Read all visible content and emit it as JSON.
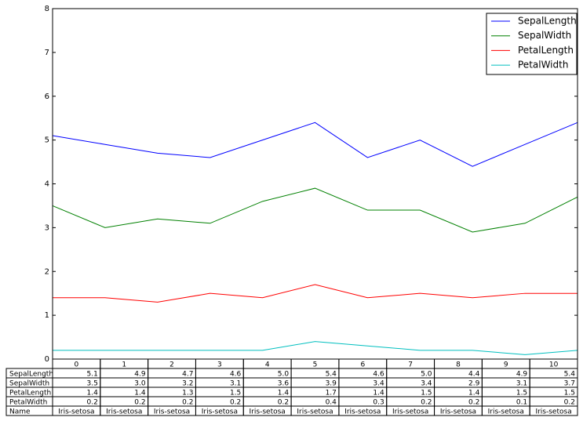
{
  "chart_data": {
    "type": "line",
    "x": [
      0,
      1,
      2,
      3,
      4,
      5,
      6,
      7,
      8,
      9,
      10
    ],
    "xlim": [
      0,
      10
    ],
    "ylim": [
      0,
      8
    ],
    "yticks": [
      0,
      1,
      2,
      3,
      4,
      5,
      6,
      7,
      8
    ],
    "legend": "upper right",
    "series": [
      {
        "name": "SepalLength",
        "color": "#0000ff",
        "values": [
          5.1,
          4.9,
          4.7,
          4.6,
          5.0,
          5.4,
          4.6,
          5.0,
          4.4,
          4.9,
          5.4
        ],
        "value_labels": [
          "5.1",
          "4.9",
          "4.7",
          "4.6",
          "5.0",
          "5.4",
          "4.6",
          "5.0",
          "4.4",
          "4.9",
          "5.4"
        ]
      },
      {
        "name": "SepalWidth",
        "color": "#008000",
        "values": [
          3.5,
          3.0,
          3.2,
          3.1,
          3.6,
          3.9,
          3.4,
          3.4,
          2.9,
          3.1,
          3.7
        ],
        "value_labels": [
          "3.5",
          "3.0",
          "3.2",
          "3.1",
          "3.6",
          "3.9",
          "3.4",
          "3.4",
          "2.9",
          "3.1",
          "3.7"
        ]
      },
      {
        "name": "PetalLength",
        "color": "#ff0000",
        "values": [
          1.4,
          1.4,
          1.3,
          1.5,
          1.4,
          1.7,
          1.4,
          1.5,
          1.4,
          1.5,
          1.5
        ],
        "value_labels": [
          "1.4",
          "1.4",
          "1.3",
          "1.5",
          "1.4",
          "1.7",
          "1.4",
          "1.5",
          "1.4",
          "1.5",
          "1.5"
        ]
      },
      {
        "name": "PetalWidth",
        "color": "#00bfbf",
        "values": [
          0.2,
          0.2,
          0.2,
          0.2,
          0.2,
          0.4,
          0.3,
          0.2,
          0.2,
          0.1,
          0.2
        ],
        "value_labels": [
          "0.2",
          "0.2",
          "0.2",
          "0.2",
          "0.2",
          "0.4",
          "0.3",
          "0.2",
          "0.2",
          "0.1",
          "0.2"
        ]
      }
    ],
    "name_row": {
      "label": "Name",
      "values": [
        "Iris-setosa",
        "Iris-setosa",
        "Iris-setosa",
        "Iris-setosa",
        "Iris-setosa",
        "Iris-setosa",
        "Iris-setosa",
        "Iris-setosa",
        "Iris-setosa",
        "Iris-setosa",
        "Iris-setosa"
      ]
    }
  }
}
